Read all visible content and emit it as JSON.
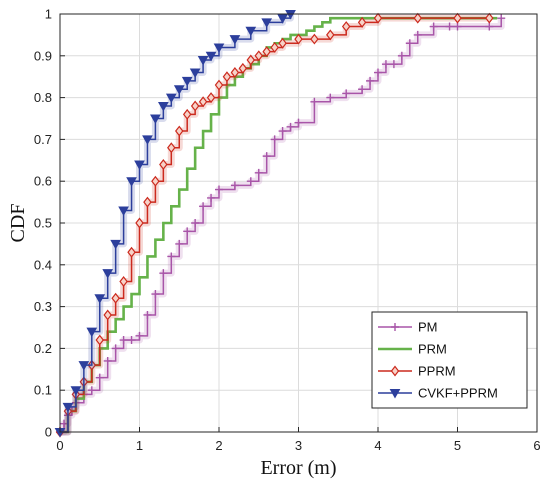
{
  "chart_data": {
    "type": "line",
    "title": "",
    "xlabel": "Error (m)",
    "ylabel": "CDF",
    "xlim": [
      0,
      6
    ],
    "ylim": [
      0,
      1
    ],
    "xticks": [
      "0",
      "1",
      "2",
      "3",
      "4",
      "5",
      "6"
    ],
    "yticks": [
      "0",
      "0.1",
      "0.2",
      "0.3",
      "0.4",
      "0.5",
      "0.6",
      "0.7",
      "0.8",
      "0.9",
      "1"
    ],
    "grid": true,
    "legend_position": "bottom-right",
    "series": [
      {
        "name": "PM",
        "color": "#a855a8",
        "marker": "plus",
        "x": [
          0.0,
          0.05,
          0.1,
          0.15,
          0.2,
          0.3,
          0.4,
          0.5,
          0.6,
          0.7,
          0.8,
          0.9,
          1.0,
          1.1,
          1.2,
          1.3,
          1.4,
          1.5,
          1.6,
          1.7,
          1.8,
          1.9,
          2.0,
          2.2,
          2.4,
          2.5,
          2.6,
          2.7,
          2.8,
          2.9,
          3.0,
          3.2,
          3.4,
          3.6,
          3.8,
          3.9,
          4.0,
          4.1,
          4.2,
          4.3,
          4.4,
          4.5,
          4.7,
          4.9,
          5.0,
          5.4,
          5.55
        ],
        "y": [
          0.0,
          0.02,
          0.04,
          0.05,
          0.07,
          0.09,
          0.1,
          0.13,
          0.17,
          0.2,
          0.22,
          0.22,
          0.23,
          0.28,
          0.33,
          0.38,
          0.42,
          0.45,
          0.48,
          0.5,
          0.54,
          0.56,
          0.58,
          0.59,
          0.6,
          0.62,
          0.66,
          0.7,
          0.72,
          0.73,
          0.74,
          0.79,
          0.8,
          0.81,
          0.82,
          0.84,
          0.86,
          0.88,
          0.88,
          0.9,
          0.93,
          0.95,
          0.97,
          0.97,
          0.97,
          0.97,
          0.99
        ]
      },
      {
        "name": "PRM",
        "color": "#66b24a",
        "marker": "none",
        "x": [
          0.0,
          0.1,
          0.2,
          0.3,
          0.4,
          0.5,
          0.6,
          0.7,
          0.8,
          0.9,
          1.0,
          1.1,
          1.2,
          1.3,
          1.4,
          1.5,
          1.6,
          1.7,
          1.8,
          1.9,
          2.0,
          2.1,
          2.2,
          2.3,
          2.4,
          2.5,
          2.6,
          2.7,
          2.8,
          2.9,
          3.0,
          3.1,
          3.2,
          3.3,
          3.4,
          3.6,
          3.8,
          4.0,
          4.5,
          5.0,
          5.5
        ],
        "y": [
          0.0,
          0.05,
          0.08,
          0.12,
          0.16,
          0.2,
          0.24,
          0.27,
          0.3,
          0.33,
          0.37,
          0.42,
          0.46,
          0.5,
          0.54,
          0.58,
          0.63,
          0.68,
          0.72,
          0.76,
          0.8,
          0.83,
          0.85,
          0.87,
          0.88,
          0.9,
          0.92,
          0.93,
          0.94,
          0.95,
          0.95,
          0.96,
          0.97,
          0.98,
          0.99,
          0.99,
          0.99,
          0.99,
          0.99,
          0.99,
          0.99
        ]
      },
      {
        "name": "PPRM",
        "color": "#cc2a1e",
        "marker": "diamond",
        "x": [
          0.0,
          0.1,
          0.2,
          0.3,
          0.4,
          0.5,
          0.6,
          0.7,
          0.8,
          0.9,
          1.0,
          1.1,
          1.2,
          1.3,
          1.4,
          1.5,
          1.6,
          1.7,
          1.8,
          1.9,
          2.0,
          2.1,
          2.2,
          2.3,
          2.4,
          2.5,
          2.6,
          2.7,
          2.8,
          3.0,
          3.2,
          3.4,
          3.6,
          3.8,
          4.0,
          4.5,
          5.0,
          5.4
        ],
        "y": [
          0.0,
          0.05,
          0.09,
          0.12,
          0.16,
          0.22,
          0.28,
          0.32,
          0.36,
          0.43,
          0.5,
          0.55,
          0.6,
          0.64,
          0.68,
          0.72,
          0.76,
          0.78,
          0.79,
          0.8,
          0.83,
          0.85,
          0.86,
          0.87,
          0.89,
          0.9,
          0.91,
          0.92,
          0.93,
          0.94,
          0.94,
          0.95,
          0.97,
          0.98,
          0.99,
          0.99,
          0.99,
          0.99
        ]
      },
      {
        "name": "CVKF+PPRM",
        "color": "#2c3f9c",
        "marker": "triangle-down",
        "x": [
          0.0,
          0.1,
          0.2,
          0.3,
          0.4,
          0.5,
          0.6,
          0.7,
          0.8,
          0.9,
          1.0,
          1.1,
          1.2,
          1.3,
          1.4,
          1.5,
          1.6,
          1.7,
          1.8,
          1.9,
          2.0,
          2.2,
          2.4,
          2.6,
          2.8,
          2.9
        ],
        "y": [
          0.0,
          0.06,
          0.1,
          0.16,
          0.24,
          0.32,
          0.38,
          0.45,
          0.53,
          0.6,
          0.64,
          0.7,
          0.75,
          0.78,
          0.8,
          0.82,
          0.84,
          0.86,
          0.89,
          0.9,
          0.92,
          0.94,
          0.96,
          0.98,
          0.99,
          1.0
        ]
      }
    ]
  }
}
